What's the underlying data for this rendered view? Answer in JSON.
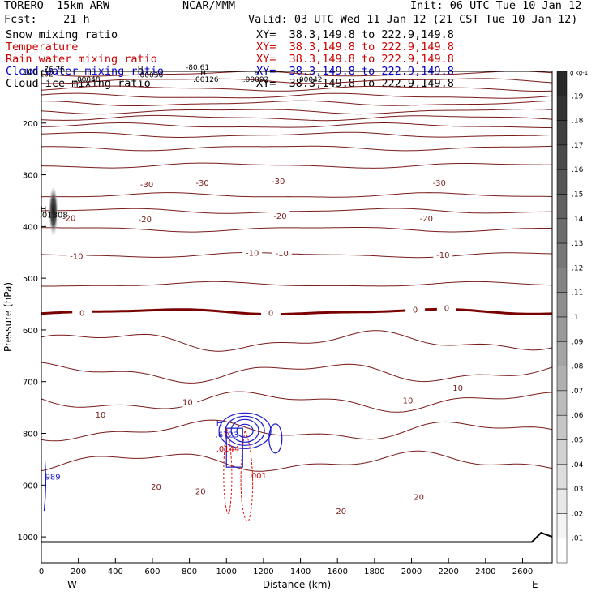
{
  "header": {
    "model": "TORERO  15km ARW",
    "org": "NCAR/MMM",
    "init": "Init: 06 UTC Tue 10 Jan 12",
    "fcst": "Fcst:    21 h",
    "valid": "Valid: 03 UTC Wed 11 Jan 12 (21 CST Tue 10 Jan 12)"
  },
  "fields": [
    {
      "name": "Snow mixing ratio",
      "xy": "XY=  38.3,149.8 to 222.9,149.8",
      "color": "#000000"
    },
    {
      "name": "Temperature",
      "xy": "XY=  38.3,149.8 to 222.9,149.8",
      "color": "#cc0000"
    },
    {
      "name": "Rain water mixing ratio",
      "xy": "XY=  38.3,149.8 to 222.9,149.8",
      "color": "#cc0000"
    },
    {
      "name": "Cloud water mixing ratio",
      "xy": "XY=  38.3,149.8 to 222.9,149.8",
      "color": "#0000cc"
    },
    {
      "name": "Cloud ice mixing ratio",
      "xy": "XY=  38.3,149.8 to 222.9,149.8",
      "color": "#000000"
    }
  ],
  "top_labels": [
    {
      "text": "-76.76",
      "x": 0,
      "p": 101
    },
    {
      "text": "102",
      "x": -10,
      "p": 110
    },
    {
      "text": "H",
      "x": 520,
      "p": 101
    },
    {
      "text": ".00036",
      "x": 520,
      "p": 112
    },
    {
      "text": "-80.61",
      "x": 780,
      "p": 97
    },
    {
      "text": "H",
      "x": 860,
      "p": 108
    },
    {
      "text": "H",
      "x": 1150,
      "p": 108
    },
    {
      "text": ".00048",
      "x": 180,
      "p": 120
    },
    {
      "text": ".00126",
      "x": 820,
      "p": 120
    },
    {
      "text": ".00092",
      "x": 1090,
      "p": 120
    },
    {
      "text": ".00042",
      "x": 1380,
      "p": 120
    }
  ],
  "colorbar": {
    "unit": "g kg-1",
    "ticks": [
      ".19",
      ".18",
      ".17",
      ".16",
      ".15",
      ".14",
      ".13",
      ".12",
      ".11",
      ".1",
      ".09",
      ".08",
      ".07",
      ".06",
      ".05",
      ".04",
      ".03",
      ".02",
      ".01"
    ]
  },
  "chart_data": {
    "type": "line",
    "title": "",
    "xlabel": "Distance (km)",
    "ylabel": "Pressure (hPa)",
    "xlim": [
      0,
      2760
    ],
    "ylim": [
      1050,
      100
    ],
    "x_ticks": [
      "0",
      "200",
      "400",
      "600",
      "800",
      "1000",
      "1200",
      "1400",
      "1600",
      "1800",
      "2000",
      "2200",
      "2400",
      "2600"
    ],
    "y_ticks": [
      "100",
      "200",
      "300",
      "400",
      "500",
      "600",
      "700",
      "800",
      "900",
      "1000"
    ],
    "x_end_labels": {
      "left": "W",
      "right": "E"
    },
    "isotherm_levels": [
      -80,
      -75,
      -70,
      -65,
      -60,
      -55,
      -50,
      -45,
      -40,
      -35,
      -30,
      -25,
      -20,
      -15,
      -10,
      -5,
      0,
      5,
      10,
      15,
      20,
      25
    ],
    "isotherm_base_pressure": [
      105,
      118,
      133,
      148,
      162,
      177,
      190,
      205,
      223,
      248,
      282,
      340,
      370,
      405,
      455,
      512,
      565,
      622,
      682,
      738,
      795,
      855
    ],
    "isotherm_labels": [
      {
        "text": "-30",
        "x": 570,
        "p": 318
      },
      {
        "text": "-30",
        "x": 870,
        "p": 315
      },
      {
        "text": "-30",
        "x": 1280,
        "p": 312
      },
      {
        "text": "-30",
        "x": 2150,
        "p": 315
      },
      {
        "text": "-20",
        "x": 150,
        "p": 383
      },
      {
        "text": "-20",
        "x": 560,
        "p": 385
      },
      {
        "text": "-20",
        "x": 1290,
        "p": 379
      },
      {
        "text": "-20",
        "x": 2080,
        "p": 384
      },
      {
        "text": "-10",
        "x": 190,
        "p": 457
      },
      {
        "text": "-10",
        "x": 1140,
        "p": 450
      },
      {
        "text": "-10",
        "x": 1300,
        "p": 451
      },
      {
        "text": "-10",
        "x": 2170,
        "p": 454
      },
      {
        "text": "0",
        "x": 220,
        "p": 566
      },
      {
        "text": "0",
        "x": 1240,
        "p": 566
      },
      {
        "text": "0",
        "x": 2020,
        "p": 560
      },
      {
        "text": "0",
        "x": 2190,
        "p": 557
      },
      {
        "text": "10",
        "x": 320,
        "p": 763
      },
      {
        "text": "10",
        "x": 790,
        "p": 739
      },
      {
        "text": "10",
        "x": 1980,
        "p": 736
      },
      {
        "text": "10",
        "x": 2250,
        "p": 711
      },
      {
        "text": "20",
        "x": 620,
        "p": 903
      },
      {
        "text": "20",
        "x": 860,
        "p": 911
      },
      {
        "text": "20",
        "x": 1620,
        "p": 950
      },
      {
        "text": "20",
        "x": 2040,
        "p": 922
      }
    ],
    "cloud_water_labels": [
      {
        "text": "H",
        "x": 945,
        "p": 786
      },
      {
        "text": ".6723",
        "x": 940,
        "p": 808
      },
      {
        "text": "989",
        "x": 20,
        "p": 889
      }
    ],
    "rain_water_labels": [
      {
        "text": ".0144",
        "x": 945,
        "p": 835
      },
      {
        "text": ".001",
        "x": 1120,
        "p": 887
      }
    ],
    "ice_labels": [
      {
        "text": "H",
        "x": -5,
        "p": 372
      },
      {
        "text": ".01308",
        "x": -10,
        "p": 383
      }
    ]
  }
}
